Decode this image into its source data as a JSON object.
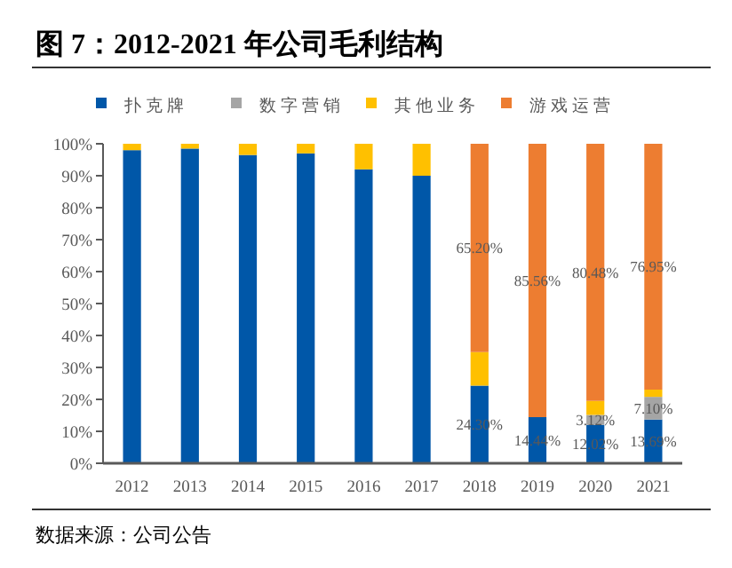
{
  "chart_data": {
    "type": "bar",
    "title": "图 7：2012-2021 年公司毛利结构",
    "categories": [
      "2012",
      "2013",
      "2014",
      "2015",
      "2016",
      "2017",
      "2018",
      "2019",
      "2020",
      "2021"
    ],
    "stacked": true,
    "series": [
      {
        "name": "扑克牌",
        "color": "#0057a8",
        "values": [
          98,
          98.5,
          96.5,
          97,
          92,
          90,
          24.3,
          14.44,
          12.02,
          13.69
        ],
        "value_labels": [
          null,
          null,
          null,
          null,
          null,
          null,
          "24.30%",
          "14.44%",
          "12.02%",
          "13.69%"
        ]
      },
      {
        "name": "数字营销",
        "color": "#a5a5a5",
        "values": [
          0,
          0,
          0,
          0,
          0,
          0,
          0,
          0,
          3.12,
          7.1
        ],
        "value_labels": [
          null,
          null,
          null,
          null,
          null,
          null,
          null,
          null,
          "3.12%",
          "7.10%"
        ]
      },
      {
        "name": "其他业务",
        "color": "#ffc000",
        "values": [
          2,
          1.5,
          3.5,
          3,
          8,
          10,
          10.5,
          0,
          4.38,
          2.26
        ]
      },
      {
        "name": "游戏运营",
        "color": "#ed7d31",
        "values": [
          0,
          0,
          0,
          0,
          0,
          0,
          65.2,
          85.56,
          80.48,
          76.95
        ],
        "value_labels": [
          null,
          null,
          null,
          null,
          null,
          null,
          "65.20%",
          "85.56%",
          "80.48%",
          "76.95%"
        ]
      }
    ],
    "ylim": [
      0,
      100
    ],
    "yticks": [
      {
        "value": 0,
        "label": "0%"
      },
      {
        "value": 10,
        "label": "10%"
      },
      {
        "value": 20,
        "label": "20%"
      },
      {
        "value": 30,
        "label": "30%"
      },
      {
        "value": 40,
        "label": "40%"
      },
      {
        "value": 50,
        "label": "50%"
      },
      {
        "value": 60,
        "label": "60%"
      },
      {
        "value": 70,
        "label": "70%"
      },
      {
        "value": 80,
        "label": "80%"
      },
      {
        "value": 90,
        "label": "90%"
      },
      {
        "value": 100,
        "label": "100%"
      }
    ],
    "legend": "top",
    "annotations": [
      "数据来源：公司公告"
    ]
  }
}
